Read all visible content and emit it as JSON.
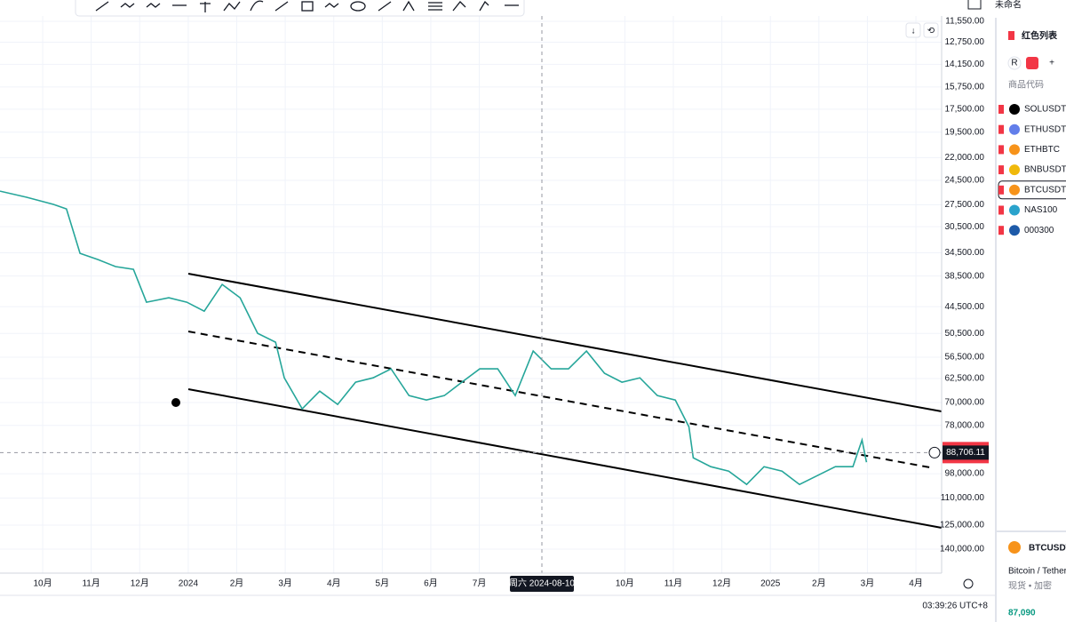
{
  "chart_data": {
    "type": "line",
    "log_scale": true,
    "y_inverted": true,
    "grid": true,
    "color": "#26a69a",
    "x": [
      -0.88,
      -0.33,
      0.22,
      0.49,
      0.77,
      1.14,
      1.5,
      1.87,
      2.14,
      2.6,
      2.97,
      3.33,
      3.7,
      4.07,
      4.43,
      4.8,
      4.98,
      5.35,
      5.71,
      6.08,
      6.45,
      6.81,
      7.18,
      7.55,
      7.91,
      8.28,
      8.64,
      9.01,
      9.38,
      9.74,
      10.11,
      10.48,
      10.84,
      11.21,
      11.58,
      11.94,
      12.31,
      12.67,
      13.04,
      13.32,
      13.41,
      13.77,
      14.14,
      14.51,
      14.87,
      15.24,
      15.6,
      15.97,
      16.34,
      16.7,
      16.89,
      16.98
    ],
    "values": [
      25770,
      26530,
      27440,
      28030,
      34590,
      35620,
      36820,
      37300,
      43570,
      42660,
      43570,
      45450,
      40060,
      42660,
      50470,
      52640,
      62290,
      72140,
      66330,
      70640,
      63600,
      62290,
      59710,
      67750,
      69200,
      67750,
      63600,
      59710,
      59710,
      67750,
      54900,
      59710,
      59710,
      54900,
      60980,
      63600,
      62290,
      67750,
      69200,
      78480,
      90900,
      94800,
      96840,
      103100,
      94800,
      96840,
      103100,
      98890,
      94800,
      94800,
      83580,
      92830
    ],
    "xlim": [
      -0.88,
      18.53
    ],
    "xticks": [
      {
        "value": 0,
        "label": "10月"
      },
      {
        "value": 1,
        "label": "11月"
      },
      {
        "value": 2,
        "label": "12月"
      },
      {
        "value": 3,
        "label": "2024"
      },
      {
        "value": 4,
        "label": "2月"
      },
      {
        "value": 5,
        "label": "3月"
      },
      {
        "value": 6,
        "label": "4月"
      },
      {
        "value": 7,
        "label": "5月"
      },
      {
        "value": 8,
        "label": "6月"
      },
      {
        "value": 9,
        "label": "7月"
      },
      {
        "value": 12,
        "label": "10月"
      },
      {
        "value": 13,
        "label": "11月"
      },
      {
        "value": 14,
        "label": "12月"
      },
      {
        "value": 15,
        "label": "2025"
      },
      {
        "value": 16,
        "label": "2月"
      },
      {
        "value": 17,
        "label": "3月"
      },
      {
        "value": 18,
        "label": "4月"
      }
    ],
    "ylim": [
      11550,
      140000
    ],
    "yticks": [
      {
        "value": 11550,
        "label": "11,550.00"
      },
      {
        "value": 12750,
        "label": "12,750.00"
      },
      {
        "value": 14150,
        "label": "14,150.00"
      },
      {
        "value": 15750,
        "label": "15,750.00"
      },
      {
        "value": 17500,
        "label": "17,500.00"
      },
      {
        "value": 19500,
        "label": "19,500.00"
      },
      {
        "value": 22000,
        "label": "22,000.00"
      },
      {
        "value": 24500,
        "label": "24,500.00"
      },
      {
        "value": 27500,
        "label": "27,500.00"
      },
      {
        "value": 30500,
        "label": "30,500.00"
      },
      {
        "value": 34500,
        "label": "34,500.00"
      },
      {
        "value": 38500,
        "label": "38,500.00"
      },
      {
        "value": 44500,
        "label": "44,500.00"
      },
      {
        "value": 50500,
        "label": "50,500.00"
      },
      {
        "value": 56500,
        "label": "56,500.00"
      },
      {
        "value": 62500,
        "label": "62,500.00"
      },
      {
        "value": 70000,
        "label": "70,000.00"
      },
      {
        "value": 78000,
        "label": "78,000.00"
      },
      {
        "value": 98000,
        "label": "98,000.00"
      },
      {
        "value": 110000,
        "label": "110,000.00"
      },
      {
        "value": 125000,
        "label": "125,000.00"
      },
      {
        "value": 140000,
        "label": "140,000.00"
      }
    ],
    "crosshair_x": {
      "value": 10.29,
      "label": "周六 2024-08-10"
    },
    "crosshair_price": {
      "value": 88706.11,
      "label": "88,706.11"
    }
  },
  "status": {
    "time": "03:39:26 UTC+8"
  },
  "header": {
    "layout_name": "未命名"
  },
  "watchlist": {
    "title": "红色列表",
    "column": "商品代码",
    "tab": "R",
    "items": [
      "SOLUSDT",
      "ETHUSDT",
      "ETHBTC",
      "BNBUSDT",
      "BTCUSDT",
      "NAS100",
      "000300"
    ],
    "selected": 4
  },
  "details": {
    "symbol": "BTCUSDT",
    "name": "Bitcoin / Tether",
    "market": "现货 • 加密",
    "price": "87,090"
  }
}
